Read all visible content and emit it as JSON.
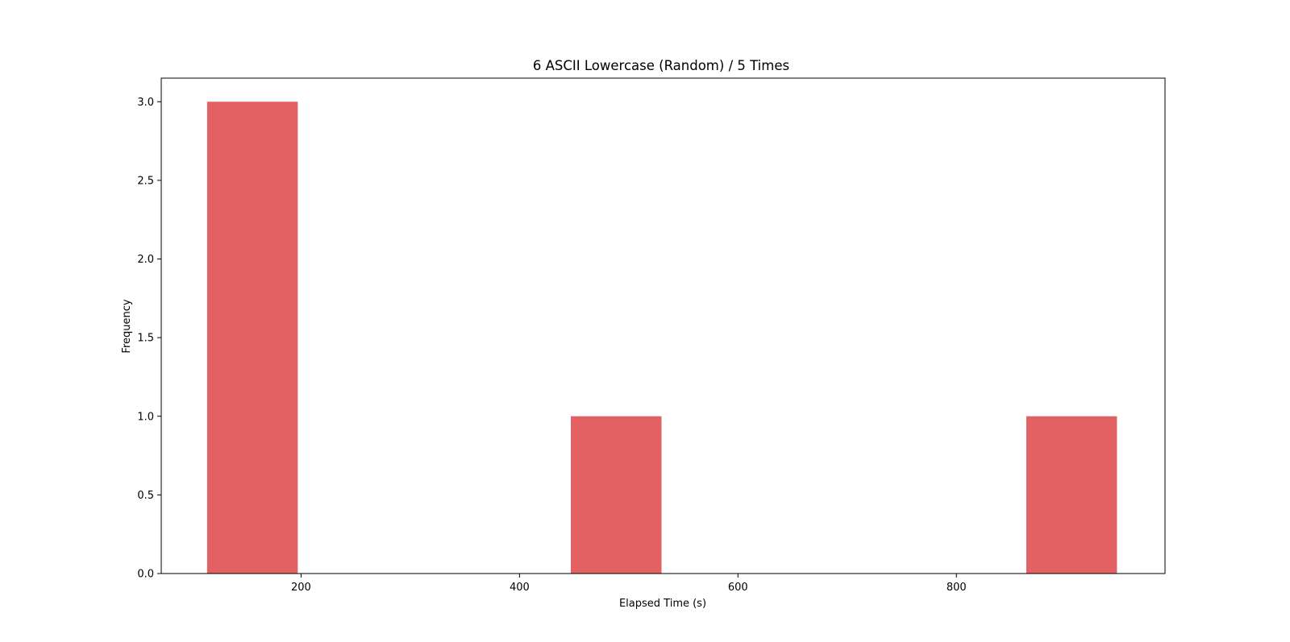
{
  "chart_data": {
    "type": "bar",
    "title": "6 ASCII Lowercase (Random) / 5 Times",
    "xlabel": "Elapsed Time (s)",
    "ylabel": "Frequency",
    "xlim": [
      72,
      991
    ],
    "ylim": [
      0,
      3.15
    ],
    "xticks": [
      200,
      400,
      600,
      800
    ],
    "yticks": [
      0.0,
      0.5,
      1.0,
      1.5,
      2.0,
      2.5,
      3.0
    ],
    "grid": false,
    "bar_color": "#e36163",
    "bins": [
      {
        "x0": 114,
        "x1": 197,
        "value": 3
      },
      {
        "x0": 447,
        "x1": 530,
        "value": 1
      },
      {
        "x0": 864,
        "x1": 947,
        "value": 1
      }
    ]
  }
}
